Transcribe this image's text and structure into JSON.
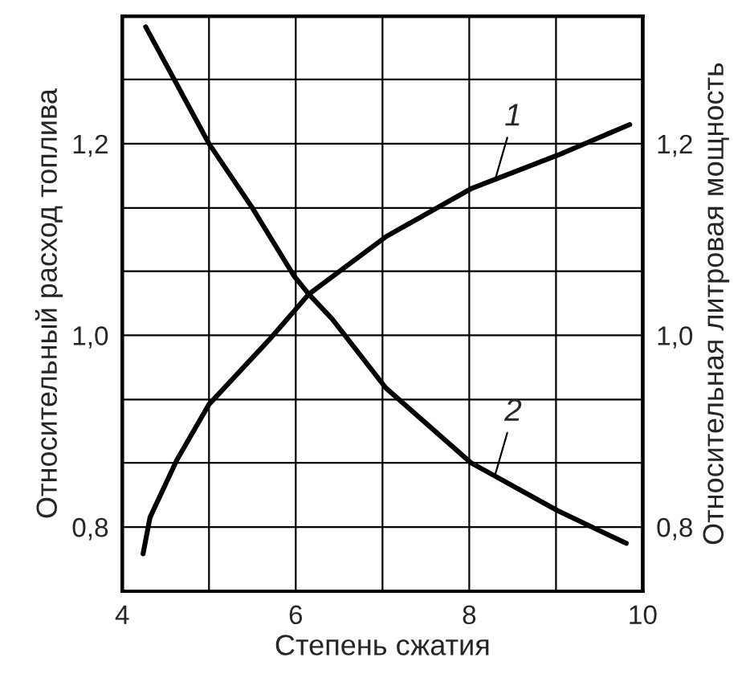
{
  "chart_data": {
    "type": "line",
    "xlabel": "Степень сжатия",
    "ylabel": "Относительный расход топлива",
    "y2label": "Относительная литровая мощность",
    "xlim": [
      4,
      10
    ],
    "xticks": [
      4,
      {
        "value": 5,
        "label": null
      },
      6,
      {
        "value": 7,
        "label": null
      },
      8,
      {
        "value": 9,
        "label": null
      },
      10
    ],
    "ylim": [
      0.733,
      1.333
    ],
    "yticks": [
      {
        "value": 0.8,
        "label": "0,8"
      },
      {
        "value": 0.867,
        "label": null
      },
      {
        "value": 0.933,
        "label": null
      },
      {
        "value": 1.0,
        "label": "1,0"
      },
      {
        "value": 1.067,
        "label": null
      },
      {
        "value": 1.133,
        "label": null
      },
      {
        "value": 1.2,
        "label": "1,2"
      },
      {
        "value": 1.267,
        "label": null
      }
    ],
    "y2lim": [
      0.733,
      1.333
    ],
    "y2ticks": [
      {
        "value": 0.8,
        "label": "0,8"
      },
      {
        "value": 1.0,
        "label": "1,0"
      },
      {
        "value": 1.2,
        "label": "1,2"
      }
    ],
    "grid": true,
    "legend": false,
    "line_style": "solid",
    "marker": "none",
    "series": [
      {
        "color": "#000000",
        "x": [
          4.24,
          4.32,
          4.63,
          5.0,
          5.69,
          6.15,
          7.04,
          8.02,
          9.02,
          9.85
        ],
        "values": [
          0.772,
          0.81,
          0.87,
          0.928,
          0.995,
          1.043,
          1.103,
          1.153,
          1.188,
          1.22
        ]
      },
      {
        "color": "#000000",
        "x": [
          4.27,
          5.0,
          5.5,
          5.98,
          6.15,
          6.42,
          7.04,
          8.02,
          9.02,
          9.81
        ],
        "values": [
          1.322,
          1.2,
          1.133,
          1.062,
          1.043,
          1.017,
          0.945,
          0.867,
          0.817,
          0.783
        ]
      }
    ],
    "annotations": [
      {
        "text": "1",
        "x": 8.3,
        "y": 1.163
      },
      {
        "text": "2",
        "x": 8.3,
        "y": 0.855
      }
    ]
  }
}
